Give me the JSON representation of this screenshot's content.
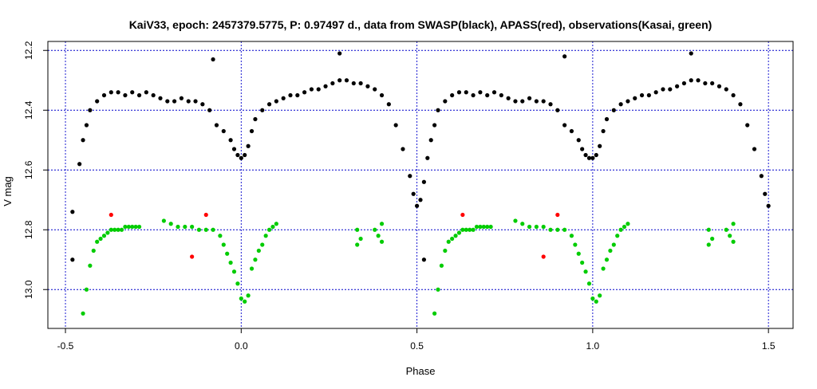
{
  "chart_data": {
    "type": "scatter",
    "title": "KaiV33, epoch: 2457379.5775, P: 0.97497 d., data from SWASP(black), APASS(red), observations(Kasai, green)",
    "xlabel": "Phase",
    "ylabel": "V mag",
    "xlim": [
      -0.55,
      1.57
    ],
    "ylim": [
      13.13,
      12.17
    ],
    "y_reversed": true,
    "xticks": [
      -0.5,
      0.0,
      0.5,
      1.0,
      1.5
    ],
    "xtick_labels": [
      "-0.5",
      "0.0",
      "0.5",
      "1.0",
      "1.5"
    ],
    "yticks": [
      12.2,
      12.4,
      12.6,
      12.8,
      13.0
    ],
    "ytick_labels": [
      "12.2",
      "12.4",
      "12.6",
      "12.8",
      "13.0"
    ],
    "grid": true,
    "series": [
      {
        "name": "SWASP",
        "color": "#000000",
        "points": [
          [
            -0.48,
            12.74
          ],
          [
            -0.46,
            12.58
          ],
          [
            -0.45,
            12.5
          ],
          [
            -0.44,
            12.45
          ],
          [
            -0.43,
            12.4
          ],
          [
            -0.41,
            12.37
          ],
          [
            -0.39,
            12.35
          ],
          [
            -0.37,
            12.34
          ],
          [
            -0.35,
            12.34
          ],
          [
            -0.33,
            12.35
          ],
          [
            -0.31,
            12.34
          ],
          [
            -0.29,
            12.35
          ],
          [
            -0.27,
            12.34
          ],
          [
            -0.25,
            12.35
          ],
          [
            -0.23,
            12.36
          ],
          [
            -0.21,
            12.37
          ],
          [
            -0.19,
            12.37
          ],
          [
            -0.17,
            12.36
          ],
          [
            -0.15,
            12.37
          ],
          [
            -0.13,
            12.37
          ],
          [
            -0.11,
            12.38
          ],
          [
            -0.09,
            12.4
          ],
          [
            -0.07,
            12.45
          ],
          [
            -0.05,
            12.47
          ],
          [
            -0.03,
            12.5
          ],
          [
            -0.02,
            12.53
          ],
          [
            -0.01,
            12.55
          ],
          [
            0.0,
            12.56
          ],
          [
            0.01,
            12.55
          ],
          [
            0.02,
            12.52
          ],
          [
            0.03,
            12.47
          ],
          [
            0.04,
            12.43
          ],
          [
            0.06,
            12.4
          ],
          [
            0.08,
            12.38
          ],
          [
            0.1,
            12.37
          ],
          [
            0.12,
            12.36
          ],
          [
            0.14,
            12.35
          ],
          [
            0.16,
            12.35
          ],
          [
            0.18,
            12.34
          ],
          [
            0.2,
            12.33
          ],
          [
            0.22,
            12.33
          ],
          [
            0.24,
            12.32
          ],
          [
            0.26,
            12.31
          ],
          [
            0.28,
            12.3
          ],
          [
            0.3,
            12.3
          ],
          [
            0.32,
            12.31
          ],
          [
            0.34,
            12.31
          ],
          [
            0.36,
            12.32
          ],
          [
            0.38,
            12.33
          ],
          [
            0.4,
            12.35
          ],
          [
            0.42,
            12.38
          ],
          [
            0.44,
            12.45
          ],
          [
            0.46,
            12.53
          ],
          [
            0.48,
            12.62
          ],
          [
            0.49,
            12.68
          ],
          [
            0.5,
            12.72
          ],
          [
            0.51,
            12.7
          ],
          [
            0.52,
            12.64
          ],
          [
            0.53,
            12.56
          ],
          [
            0.54,
            12.5
          ],
          [
            0.55,
            12.45
          ],
          [
            0.56,
            12.4
          ],
          [
            0.58,
            12.37
          ],
          [
            0.6,
            12.35
          ],
          [
            0.62,
            12.34
          ],
          [
            0.64,
            12.34
          ],
          [
            0.66,
            12.35
          ],
          [
            0.68,
            12.34
          ],
          [
            0.7,
            12.35
          ],
          [
            0.72,
            12.34
          ],
          [
            0.74,
            12.35
          ],
          [
            0.76,
            12.36
          ],
          [
            0.78,
            12.37
          ],
          [
            0.8,
            12.37
          ],
          [
            0.82,
            12.36
          ],
          [
            0.84,
            12.37
          ],
          [
            0.86,
            12.37
          ],
          [
            0.88,
            12.38
          ],
          [
            0.9,
            12.4
          ],
          [
            0.92,
            12.45
          ],
          [
            0.94,
            12.47
          ],
          [
            0.96,
            12.5
          ],
          [
            0.97,
            12.53
          ],
          [
            0.98,
            12.55
          ],
          [
            0.99,
            12.56
          ],
          [
            1.0,
            12.56
          ],
          [
            1.01,
            12.55
          ],
          [
            1.02,
            12.52
          ],
          [
            1.03,
            12.47
          ],
          [
            1.04,
            12.43
          ],
          [
            1.06,
            12.4
          ],
          [
            1.08,
            12.38
          ],
          [
            1.1,
            12.37
          ],
          [
            1.12,
            12.36
          ],
          [
            1.14,
            12.35
          ],
          [
            1.16,
            12.35
          ],
          [
            1.18,
            12.34
          ],
          [
            1.2,
            12.33
          ],
          [
            1.22,
            12.33
          ],
          [
            1.24,
            12.32
          ],
          [
            1.26,
            12.31
          ],
          [
            1.28,
            12.3
          ],
          [
            1.3,
            12.3
          ],
          [
            1.32,
            12.31
          ],
          [
            1.34,
            12.31
          ],
          [
            1.36,
            12.32
          ],
          [
            1.38,
            12.33
          ],
          [
            1.4,
            12.35
          ],
          [
            1.42,
            12.38
          ],
          [
            1.44,
            12.45
          ],
          [
            1.46,
            12.53
          ],
          [
            1.48,
            12.62
          ],
          [
            1.49,
            12.68
          ],
          [
            1.5,
            12.72
          ],
          [
            -0.48,
            12.9
          ],
          [
            0.28,
            12.21
          ],
          [
            1.28,
            12.21
          ],
          [
            -0.08,
            12.23
          ],
          [
            0.92,
            12.22
          ],
          [
            0.52,
            12.9
          ]
        ]
      },
      {
        "name": "APASS",
        "color": "#ff0000",
        "points": [
          [
            -0.37,
            12.75
          ],
          [
            -0.1,
            12.75
          ],
          [
            -0.14,
            12.89
          ],
          [
            0.63,
            12.75
          ],
          [
            0.9,
            12.75
          ],
          [
            0.86,
            12.89
          ]
        ]
      },
      {
        "name": "Kasai",
        "color": "#00cc00",
        "points": [
          [
            -0.45,
            13.08
          ],
          [
            -0.44,
            13.0
          ],
          [
            -0.43,
            12.92
          ],
          [
            -0.42,
            12.87
          ],
          [
            -0.41,
            12.84
          ],
          [
            -0.4,
            12.83
          ],
          [
            -0.39,
            12.82
          ],
          [
            -0.38,
            12.81
          ],
          [
            -0.37,
            12.8
          ],
          [
            -0.36,
            12.8
          ],
          [
            -0.35,
            12.8
          ],
          [
            -0.34,
            12.8
          ],
          [
            -0.33,
            12.79
          ],
          [
            -0.32,
            12.79
          ],
          [
            -0.31,
            12.79
          ],
          [
            -0.3,
            12.79
          ],
          [
            -0.29,
            12.79
          ],
          [
            -0.22,
            12.77
          ],
          [
            -0.2,
            12.78
          ],
          [
            -0.18,
            12.79
          ],
          [
            -0.16,
            12.79
          ],
          [
            -0.14,
            12.79
          ],
          [
            -0.12,
            12.8
          ],
          [
            -0.1,
            12.8
          ],
          [
            -0.08,
            12.8
          ],
          [
            -0.06,
            12.82
          ],
          [
            -0.05,
            12.85
          ],
          [
            -0.04,
            12.88
          ],
          [
            -0.03,
            12.91
          ],
          [
            -0.02,
            12.94
          ],
          [
            -0.01,
            12.98
          ],
          [
            0.0,
            13.03
          ],
          [
            0.01,
            13.04
          ],
          [
            0.02,
            13.02
          ],
          [
            0.03,
            12.93
          ],
          [
            0.04,
            12.9
          ],
          [
            0.05,
            12.87
          ],
          [
            0.06,
            12.85
          ],
          [
            0.07,
            12.82
          ],
          [
            0.08,
            12.8
          ],
          [
            0.09,
            12.79
          ],
          [
            0.1,
            12.78
          ],
          [
            0.33,
            12.8
          ],
          [
            0.33,
            12.85
          ],
          [
            0.34,
            12.83
          ],
          [
            0.38,
            12.8
          ],
          [
            0.39,
            12.82
          ],
          [
            0.4,
            12.84
          ],
          [
            0.4,
            12.78
          ],
          [
            0.55,
            13.08
          ],
          [
            0.56,
            13.0
          ],
          [
            0.57,
            12.92
          ],
          [
            0.58,
            12.87
          ],
          [
            0.59,
            12.84
          ],
          [
            0.6,
            12.83
          ],
          [
            0.61,
            12.82
          ],
          [
            0.62,
            12.81
          ],
          [
            0.63,
            12.8
          ],
          [
            0.64,
            12.8
          ],
          [
            0.65,
            12.8
          ],
          [
            0.66,
            12.8
          ],
          [
            0.67,
            12.79
          ],
          [
            0.68,
            12.79
          ],
          [
            0.69,
            12.79
          ],
          [
            0.7,
            12.79
          ],
          [
            0.71,
            12.79
          ],
          [
            0.78,
            12.77
          ],
          [
            0.8,
            12.78
          ],
          [
            0.82,
            12.79
          ],
          [
            0.84,
            12.79
          ],
          [
            0.86,
            12.79
          ],
          [
            0.88,
            12.8
          ],
          [
            0.9,
            12.8
          ],
          [
            0.92,
            12.8
          ],
          [
            0.94,
            12.82
          ],
          [
            0.95,
            12.85
          ],
          [
            0.96,
            12.88
          ],
          [
            0.97,
            12.91
          ],
          [
            0.98,
            12.94
          ],
          [
            0.99,
            12.98
          ],
          [
            1.0,
            13.03
          ],
          [
            1.01,
            13.04
          ],
          [
            1.02,
            13.02
          ],
          [
            1.03,
            12.93
          ],
          [
            1.04,
            12.9
          ],
          [
            1.05,
            12.87
          ],
          [
            1.06,
            12.85
          ],
          [
            1.07,
            12.82
          ],
          [
            1.08,
            12.8
          ],
          [
            1.09,
            12.79
          ],
          [
            1.1,
            12.78
          ],
          [
            1.33,
            12.8
          ],
          [
            1.33,
            12.85
          ],
          [
            1.34,
            12.83
          ],
          [
            1.38,
            12.8
          ],
          [
            1.39,
            12.82
          ],
          [
            1.4,
            12.84
          ],
          [
            1.4,
            12.78
          ]
        ]
      }
    ]
  }
}
